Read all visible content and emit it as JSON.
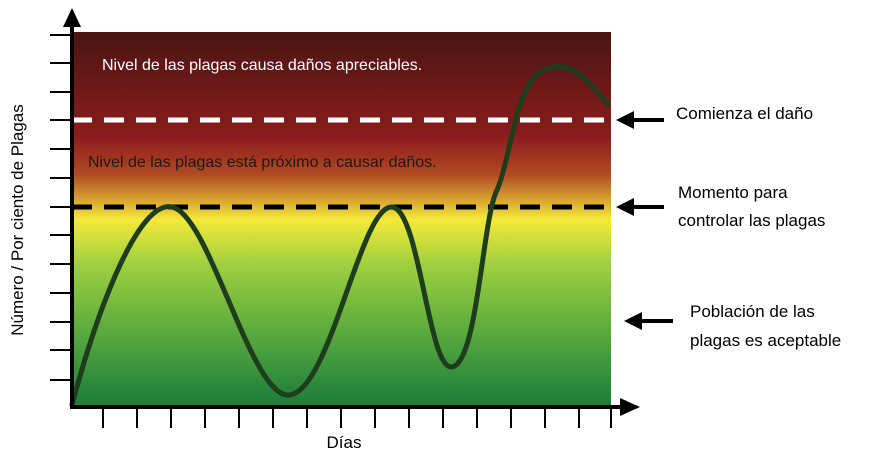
{
  "zones": {
    "damage": "Nivel de las plagas causa daños apreciables.",
    "near_damage": "Nivel de las plagas está  próximo  a  causar  daños."
  },
  "annotations": {
    "damage_begins": "Comienza el daño",
    "control_line1": "Momento para",
    "control_line2": "controlar las plagas",
    "acceptable_line1": "Población de las",
    "acceptable_line2": "plagas es aceptable"
  },
  "axes": {
    "ylabel": "Número / Por ciento de Plagas",
    "xlabel": "Días"
  },
  "colors": {
    "zone_top": "#4a1414",
    "zone_red": "#8c1c1c",
    "zone_yellow": "#f4ea3a",
    "zone_lightgreen": "#9fcf3f",
    "zone_darkgreen": "#1a7c3a",
    "curve": "#1e3d1c",
    "axis": "#000000"
  },
  "icons": {
    "thresholds": [
      "dashed-line-white",
      "dashed-line-black"
    ],
    "pointers": [
      "left-arrow",
      "left-arrow",
      "left-arrow"
    ]
  }
}
